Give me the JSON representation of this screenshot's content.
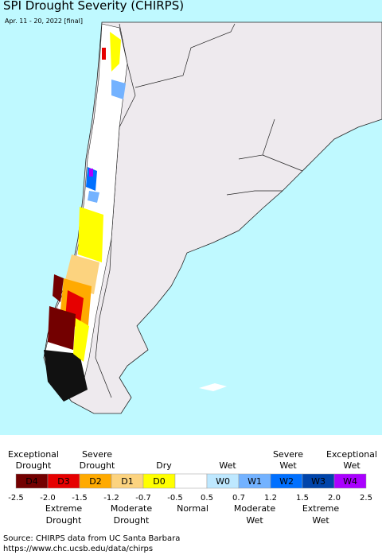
{
  "header": {
    "title": "SPI Drought Severity (CHIRPS)",
    "subtitle": "Apr. 11 - 20, 2022 [final]"
  },
  "legend": {
    "boxes": [
      {
        "label": "D4",
        "color": "#730000"
      },
      {
        "label": "D3",
        "color": "#e60000"
      },
      {
        "label": "D2",
        "color": "#ffaa00"
      },
      {
        "label": "D1",
        "color": "#fcd37f"
      },
      {
        "label": "D0",
        "color": "#ffff00"
      },
      {
        "label": "",
        "color": "#ffffff"
      },
      {
        "label": "W0",
        "color": "#bee8ff"
      },
      {
        "label": "W1",
        "color": "#73b2ff"
      },
      {
        "label": "W2",
        "color": "#0070ff"
      },
      {
        "label": "W3",
        "color": "#0044aa"
      },
      {
        "label": "W4",
        "color": "#aa00ff"
      }
    ],
    "ticks": [
      "-2.5",
      "-2.0",
      "-1.5",
      "-1.2",
      "-0.7",
      "-0.5",
      "0.5",
      "0.7",
      "1.2",
      "1.5",
      "2.0",
      "2.5"
    ],
    "upper_labels": [
      {
        "lines": [
          "Exceptional",
          "Drought"
        ]
      },
      {
        "lines": [
          "Severe",
          "Drought"
        ]
      },
      {
        "lines": [
          "Dry"
        ]
      },
      {
        "lines": [
          "Wet"
        ]
      },
      {
        "lines": [
          "Severe",
          "Wet"
        ]
      },
      {
        "lines": [
          "Exceptional",
          "Wet"
        ]
      }
    ],
    "lower_labels": [
      {
        "lines": [
          "Extreme",
          "Drought"
        ]
      },
      {
        "lines": [
          "Moderate",
          "Drought"
        ]
      },
      {
        "lines": [
          "Normal"
        ]
      },
      {
        "lines": [
          "Moderate",
          "Wet"
        ]
      },
      {
        "lines": [
          "Extreme",
          "Wet"
        ]
      }
    ]
  },
  "footer": {
    "source": "Source: CHIRPS data from UC Santa Barbara",
    "url": "https://www.chc.ucsb.edu/data/chirps"
  }
}
